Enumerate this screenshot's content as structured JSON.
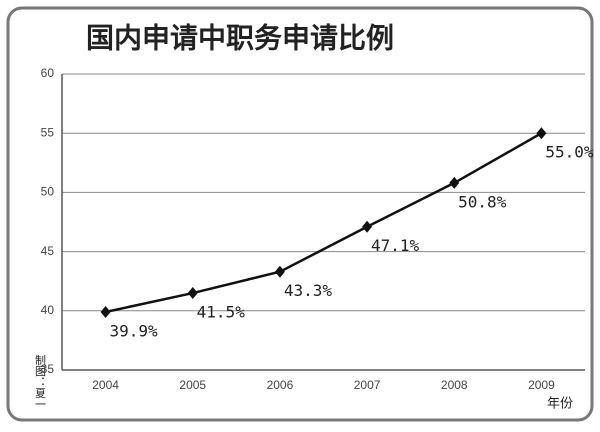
{
  "chart_data": {
    "type": "line",
    "title": "国内申请中职务申请比例",
    "x_label": "年份",
    "credit": "制图：夏一",
    "categories": [
      "2004",
      "2005",
      "2006",
      "2007",
      "2008",
      "2009"
    ],
    "values": [
      39.9,
      41.5,
      43.3,
      47.1,
      50.8,
      55.0
    ],
    "value_labels": [
      "39.9%",
      "41.5%",
      "43.3%",
      "47.1%",
      "50.8%",
      "55.0%"
    ],
    "color": "#111111",
    "ylim": [
      35,
      60
    ],
    "yticks": [
      35,
      40,
      45,
      50,
      55,
      60
    ],
    "grid": true
  }
}
